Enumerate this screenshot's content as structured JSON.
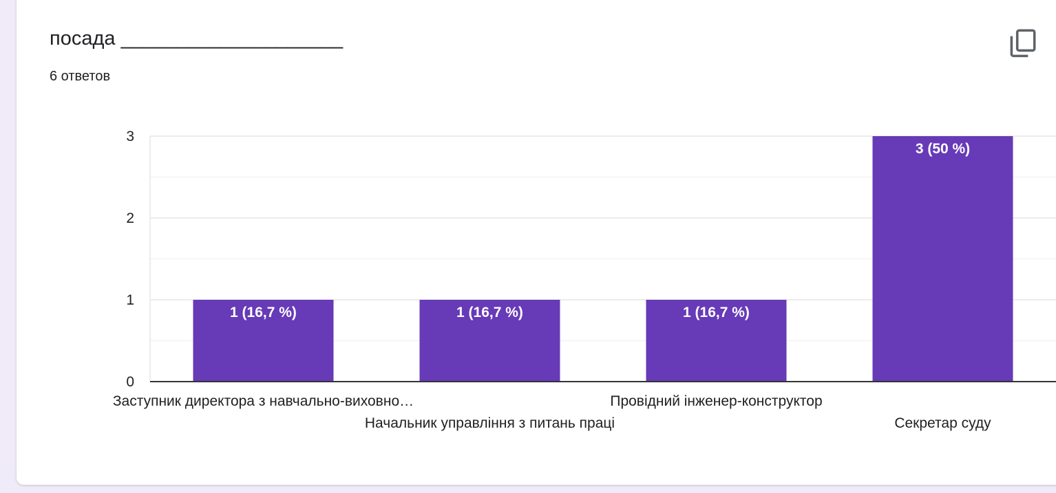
{
  "question": {
    "title": "посада ____________________",
    "responses": "6 ответов"
  },
  "icons": {
    "copy": "copy-icon"
  },
  "colors": {
    "bar": "#673ab7",
    "grid": "#e8e8e8",
    "axis": "#333333",
    "text": "#202124"
  },
  "chart_data": {
    "type": "bar",
    "categories": [
      "Заступник директора з навчально-виховно…",
      "Начальник управління з питань праці",
      "Провідний інженер-конструктор",
      "Секретар суду"
    ],
    "values": [
      1,
      1,
      1,
      3
    ],
    "data_labels": [
      "1 (16,7 %)",
      "1 (16,7 %)",
      "1 (16,7 %)",
      "3 (50 %)"
    ],
    "yticks": [
      "0",
      "1",
      "2",
      "3"
    ],
    "ylim": [
      0,
      3
    ],
    "grid": true,
    "legend": "none"
  }
}
